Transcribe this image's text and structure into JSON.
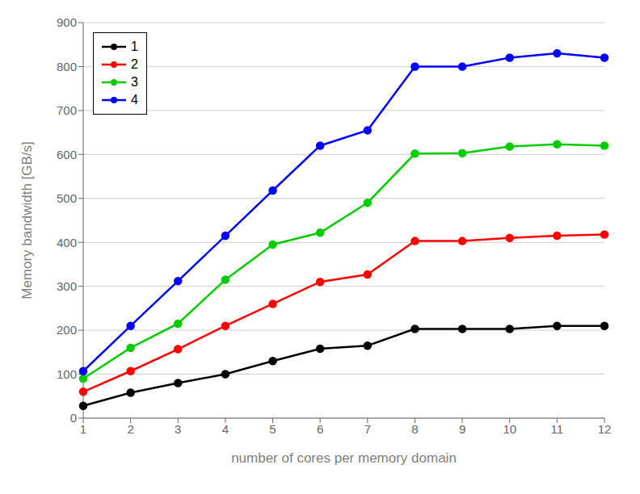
{
  "chart_data": {
    "type": "line",
    "x": [
      1,
      2,
      3,
      4,
      5,
      6,
      7,
      8,
      9,
      10,
      11,
      12
    ],
    "series": [
      {
        "name": "1",
        "color": "#000000",
        "values": [
          28,
          58,
          80,
          100,
          130,
          158,
          165,
          203,
          203,
          203,
          210,
          210
        ]
      },
      {
        "name": "2",
        "color": "#ff0000",
        "values": [
          60,
          107,
          157,
          210,
          260,
          310,
          327,
          403,
          403,
          410,
          415,
          418
        ]
      },
      {
        "name": "3",
        "color": "#00cc00",
        "values": [
          90,
          160,
          215,
          315,
          395,
          422,
          490,
          602,
          603,
          618,
          623,
          620
        ]
      },
      {
        "name": "4",
        "color": "#0000ff",
        "values": [
          107,
          210,
          312,
          415,
          518,
          620,
          655,
          800,
          800,
          820,
          830,
          820
        ]
      }
    ],
    "xlabel": "number of cores per memory domain",
    "ylabel": "Memory bandwidth [GB/s]",
    "xlim": [
      1,
      12
    ],
    "ylim": [
      0,
      900
    ],
    "xticks": [
      1,
      2,
      3,
      4,
      5,
      6,
      7,
      8,
      9,
      10,
      11,
      12
    ],
    "yticks": [
      0,
      100,
      200,
      300,
      400,
      500,
      600,
      700,
      800,
      900
    ],
    "grid": "y",
    "legend": "upper left",
    "marker": "circle"
  }
}
